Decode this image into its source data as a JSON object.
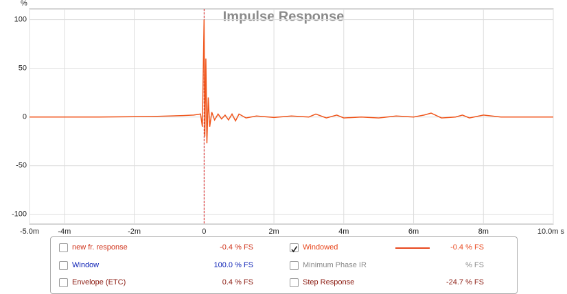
{
  "chart_data": {
    "type": "line",
    "title": "Impulse Response",
    "y_label": "%",
    "x": [
      -5,
      -3,
      -1.5,
      -1,
      -0.6,
      -0.3,
      -0.1,
      -0.05,
      0,
      0.02,
      0.05,
      0.08,
      0.12,
      0.16,
      0.22,
      0.3,
      0.4,
      0.5,
      0.6,
      0.7,
      0.8,
      0.9,
      1.0,
      1.2,
      1.5,
      2,
      2.5,
      3,
      3.2,
      3.5,
      3.8,
      4,
      4.5,
      5,
      5.5,
      6,
      6.3,
      6.5,
      6.8,
      7.2,
      7.4,
      7.6,
      8,
      8.5,
      9,
      10
    ],
    "values": [
      0,
      0,
      0.5,
      1,
      1.5,
      2,
      3,
      -10,
      100,
      -20,
      60,
      -27,
      20,
      -10,
      5,
      -3,
      3,
      -2,
      2,
      -3,
      3,
      -4,
      3,
      -1,
      1,
      -0.5,
      1,
      0,
      3,
      -1,
      2,
      -1,
      0,
      -1,
      1,
      0,
      2,
      4,
      -1,
      0,
      2,
      -1,
      2,
      0,
      0,
      0
    ],
    "color": "#f0561c",
    "xlim": [
      -5,
      10
    ],
    "ylim": [
      -110,
      111
    ],
    "xticks": [
      {
        "value": -5,
        "label": "-5.0m"
      },
      {
        "value": -4,
        "label": "-4m"
      },
      {
        "value": -2,
        "label": "-2m"
      },
      0,
      {
        "value": 2,
        "label": "2m"
      },
      {
        "value": 4,
        "label": "4m"
      },
      {
        "value": 6,
        "label": "6m"
      },
      {
        "value": 8,
        "label": "8m"
      },
      {
        "value": 10,
        "label": "10.0m s"
      }
    ],
    "yticks": [
      -100,
      -50,
      0,
      50,
      100
    ],
    "grid": true
  },
  "panel": {
    "rows": [
      [
        {
          "label": "new fr. response",
          "value": "-0.4 % FS",
          "checked": false,
          "color": "#d0341c"
        },
        {
          "label": "Windowed",
          "value": "-0.4 % FS",
          "checked": true,
          "color": "#e8461c"
        }
      ],
      [
        {
          "label": "Window",
          "value": "100.0 % FS",
          "checked": false,
          "color": "#0a1fb5"
        },
        {
          "label": "Minimum Phase IR",
          "value": "% FS",
          "checked": false,
          "color": "#8a8a8a"
        }
      ],
      [
        {
          "label": "Envelope (ETC)",
          "value": "0.4 % FS",
          "checked": false,
          "color": "#8b1a10"
        },
        {
          "label": "Step Response",
          "value": "-24.7 % FS",
          "checked": false,
          "color": "#8b1a10"
        }
      ]
    ]
  }
}
